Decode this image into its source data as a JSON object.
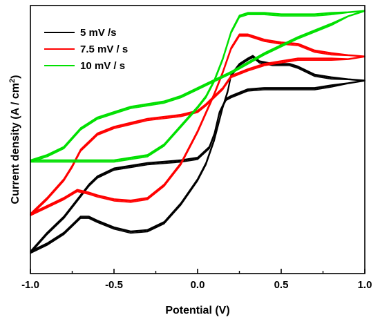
{
  "chart_data": {
    "type": "line",
    "xlabel": "Potential (V)",
    "ylabel": "Current density (A / cm",
    "ylabel_superscript": "2",
    "ylabel_close": ")",
    "xlim": [
      -1.0,
      1.0
    ],
    "ylim": [
      0,
      100
    ],
    "x_ticks": [
      -1.0,
      -0.5,
      0.0,
      0.5,
      1.0
    ],
    "x_tick_labels": [
      "-1.0",
      "-0.5",
      "0.0",
      "0.5",
      "1.0"
    ],
    "y_tick_labels_shown": false,
    "grid": false,
    "legend": {
      "placement": "top-left",
      "entries": [
        {
          "label": "5 mV /s",
          "color": "#000000"
        },
        {
          "label": "7.5 mV / s",
          "color": "#ff0000"
        },
        {
          "label": "10 mV / s",
          "color": "#00e000"
        }
      ]
    },
    "series": [
      {
        "name": "5 mV /s",
        "color": "#000000",
        "cycles": 3,
        "forward": [
          [
            -1.0,
            8
          ],
          [
            -0.9,
            11
          ],
          [
            -0.8,
            15
          ],
          [
            -0.75,
            18
          ],
          [
            -0.7,
            21
          ],
          [
            -0.65,
            21
          ],
          [
            -0.6,
            19.5
          ],
          [
            -0.5,
            17
          ],
          [
            -0.4,
            15.5
          ],
          [
            -0.3,
            16
          ],
          [
            -0.2,
            19
          ],
          [
            -0.1,
            26
          ],
          [
            0.0,
            35
          ],
          [
            0.05,
            41
          ],
          [
            0.1,
            50
          ],
          [
            0.15,
            62
          ],
          [
            0.18,
            68
          ],
          [
            0.2,
            74
          ],
          [
            0.25,
            78
          ],
          [
            0.3,
            80
          ],
          [
            0.33,
            81
          ],
          [
            0.37,
            79
          ],
          [
            0.45,
            78
          ],
          [
            0.55,
            78
          ],
          [
            0.6,
            77
          ],
          [
            0.7,
            74
          ],
          [
            0.8,
            73
          ],
          [
            0.9,
            72.5
          ],
          [
            1.0,
            72
          ]
        ],
        "reverse": [
          [
            1.0,
            72
          ],
          [
            0.9,
            71
          ],
          [
            0.8,
            70
          ],
          [
            0.7,
            69
          ],
          [
            0.6,
            69
          ],
          [
            0.5,
            69
          ],
          [
            0.4,
            69
          ],
          [
            0.3,
            68.5
          ],
          [
            0.2,
            66
          ],
          [
            0.17,
            65
          ],
          [
            0.13,
            60
          ],
          [
            0.1,
            52
          ],
          [
            0.07,
            47
          ],
          [
            0.0,
            43
          ],
          [
            -0.1,
            42
          ],
          [
            -0.3,
            41
          ],
          [
            -0.4,
            40
          ],
          [
            -0.5,
            39
          ],
          [
            -0.6,
            36
          ],
          [
            -0.65,
            33
          ],
          [
            -0.7,
            29
          ],
          [
            -0.8,
            21
          ],
          [
            -0.9,
            15
          ],
          [
            -1.0,
            8
          ]
        ]
      },
      {
        "name": "7.5 mV / s",
        "color": "#ff0000",
        "cycles": 3,
        "forward": [
          [
            -1.0,
            22
          ],
          [
            -0.9,
            25
          ],
          [
            -0.8,
            28
          ],
          [
            -0.72,
            31
          ],
          [
            -0.65,
            30
          ],
          [
            -0.6,
            29
          ],
          [
            -0.5,
            27.5
          ],
          [
            -0.4,
            27
          ],
          [
            -0.3,
            28
          ],
          [
            -0.2,
            33
          ],
          [
            -0.1,
            41
          ],
          [
            0.0,
            53
          ],
          [
            0.1,
            67
          ],
          [
            0.15,
            75
          ],
          [
            0.2,
            84
          ],
          [
            0.25,
            89
          ],
          [
            0.3,
            89
          ],
          [
            0.4,
            87
          ],
          [
            0.5,
            86
          ],
          [
            0.6,
            85.5
          ],
          [
            0.7,
            83
          ],
          [
            0.8,
            82
          ],
          [
            0.9,
            81.5
          ],
          [
            1.0,
            81
          ]
        ],
        "reverse": [
          [
            1.0,
            81
          ],
          [
            0.9,
            80
          ],
          [
            0.8,
            80
          ],
          [
            0.7,
            80
          ],
          [
            0.6,
            80
          ],
          [
            0.5,
            79
          ],
          [
            0.4,
            78
          ],
          [
            0.3,
            76
          ],
          [
            0.2,
            73.5
          ],
          [
            0.15,
            69
          ],
          [
            0.1,
            66
          ],
          [
            0.05,
            63
          ],
          [
            0.0,
            60.5
          ],
          [
            -0.1,
            59
          ],
          [
            -0.3,
            57.5
          ],
          [
            -0.4,
            56
          ],
          [
            -0.5,
            54.5
          ],
          [
            -0.6,
            52
          ],
          [
            -0.7,
            46
          ],
          [
            -0.75,
            40
          ],
          [
            -0.8,
            35
          ],
          [
            -0.9,
            28
          ],
          [
            -1.0,
            22
          ]
        ]
      },
      {
        "name": "10 mV / s",
        "color": "#00e000",
        "cycles": 3,
        "forward": [
          [
            -1.0,
            42
          ],
          [
            -0.9,
            42
          ],
          [
            -0.8,
            42
          ],
          [
            -0.7,
            42
          ],
          [
            -0.5,
            42
          ],
          [
            -0.3,
            44
          ],
          [
            -0.2,
            48
          ],
          [
            -0.1,
            55
          ],
          [
            0.0,
            62
          ],
          [
            0.05,
            66
          ],
          [
            0.1,
            72
          ],
          [
            0.15,
            80
          ],
          [
            0.2,
            90
          ],
          [
            0.25,
            96
          ],
          [
            0.3,
            97
          ],
          [
            0.4,
            97
          ],
          [
            0.5,
            96.5
          ],
          [
            0.6,
            96.5
          ],
          [
            0.7,
            96.5
          ],
          [
            0.8,
            97
          ],
          [
            0.9,
            97.5
          ],
          [
            1.0,
            98
          ]
        ],
        "reverse": [
          [
            1.0,
            98
          ],
          [
            0.9,
            96
          ],
          [
            0.8,
            93
          ],
          [
            0.6,
            88
          ],
          [
            0.4,
            82
          ],
          [
            0.2,
            75
          ],
          [
            0.1,
            72
          ],
          [
            0.0,
            69
          ],
          [
            -0.1,
            66
          ],
          [
            -0.2,
            64
          ],
          [
            -0.3,
            63
          ],
          [
            -0.4,
            62
          ],
          [
            -0.5,
            60
          ],
          [
            -0.6,
            58
          ],
          [
            -0.7,
            54
          ],
          [
            -0.8,
            47
          ],
          [
            -0.9,
            44
          ],
          [
            -1.0,
            42
          ]
        ]
      }
    ]
  }
}
